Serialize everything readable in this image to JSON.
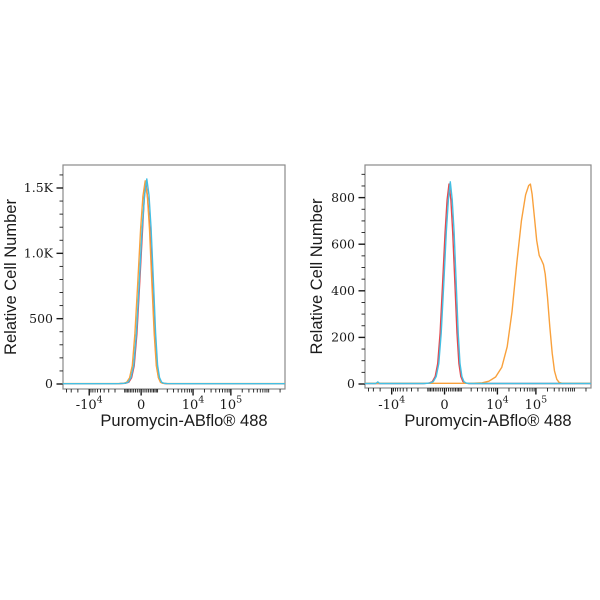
{
  "figure": {
    "background": "#ffffff",
    "frame_color": "#8a8a8a",
    "tick_color": "#1a1a1a",
    "text_color": "#1a1a1a"
  },
  "chart_data": [
    {
      "type": "line",
      "subtype": "flow-cytometry-histogram-overlay",
      "xlabel": "Puromycin-ABflo® 488",
      "ylabel": "Relative Cell Number",
      "legend": "none",
      "grid": false,
      "x_axis": {
        "scale": "biexponential",
        "zero_frac": 0.352,
        "k": 0.074,
        "a": 850,
        "major_ticks": [
          {
            "base": "-10",
            "exp": "4",
            "value": -10000
          },
          {
            "base": "0",
            "exp": "",
            "value": 0
          },
          {
            "base": "10",
            "exp": "4",
            "value": 10000
          },
          {
            "base": "10",
            "exp": "5",
            "value": 100000
          }
        ]
      },
      "y_axis": {
        "major_ticks": [
          {
            "label": "0",
            "value": 0
          },
          {
            "label": "500",
            "value": 500
          },
          {
            "label": "1.0K",
            "value": 1000
          },
          {
            "label": "1.5K",
            "value": 1500
          }
        ],
        "minor_step": 100,
        "max": 1676
      },
      "series": [
        {
          "name": "red",
          "color": "#e4494f",
          "points": [
            [
              -49000,
              2
            ],
            [
              -20000,
              2
            ],
            [
              -5000,
              2
            ],
            [
              -2000,
              2
            ],
            [
              -1400,
              3
            ],
            [
              -950,
              5
            ],
            [
              -700,
              14
            ],
            [
              -520,
              48
            ],
            [
              -370,
              140
            ],
            [
              -220,
              385
            ],
            [
              -80,
              760
            ],
            [
              70,
              1175
            ],
            [
              160,
              1420
            ],
            [
              250,
              1540
            ],
            [
              350,
              1420
            ],
            [
              480,
              1175
            ],
            [
              620,
              760
            ],
            [
              770,
              385
            ],
            [
              920,
              140
            ],
            [
              1080,
              48
            ],
            [
              1260,
              14
            ],
            [
              1520,
              5
            ],
            [
              1900,
              2
            ],
            [
              5000,
              2
            ],
            [
              20000,
              2
            ],
            [
              100000,
              2
            ],
            [
              600000,
              2
            ],
            [
              2600000,
              2
            ]
          ]
        },
        {
          "name": "orange",
          "color": "#f9a13c",
          "points": [
            [
              -49000,
              3
            ],
            [
              -20000,
              3
            ],
            [
              -5000,
              3
            ],
            [
              -2000,
              3
            ],
            [
              -1600,
              3
            ],
            [
              -1100,
              5
            ],
            [
              -850,
              13
            ],
            [
              -650,
              48
            ],
            [
              -480,
              140
            ],
            [
              -330,
              385
            ],
            [
              -180,
              765
            ],
            [
              -30,
              1185
            ],
            [
              90,
              1435
            ],
            [
              210,
              1555
            ],
            [
              330,
              1435
            ],
            [
              450,
              1185
            ],
            [
              600,
              765
            ],
            [
              750,
              385
            ],
            [
              900,
              140
            ],
            [
              1070,
              48
            ],
            [
              1250,
              13
            ],
            [
              1500,
              5
            ],
            [
              1900,
              3
            ],
            [
              5000,
              3
            ],
            [
              20000,
              3
            ],
            [
              100000,
              3
            ],
            [
              600000,
              3
            ],
            [
              2600000,
              3
            ]
          ]
        },
        {
          "name": "cyan",
          "color": "#44bfe3",
          "points": [
            [
              -49000,
              2
            ],
            [
              -20000,
              2
            ],
            [
              -5000,
              2
            ],
            [
              -2000,
              2
            ],
            [
              -1500,
              3
            ],
            [
              -1000,
              5
            ],
            [
              -750,
              14
            ],
            [
              -560,
              50
            ],
            [
              -400,
              142
            ],
            [
              -250,
              390
            ],
            [
              -100,
              770
            ],
            [
              50,
              1190
            ],
            [
              180,
              1445
            ],
            [
              300,
              1570
            ],
            [
              420,
              1445
            ],
            [
              550,
              1190
            ],
            [
              700,
              770
            ],
            [
              850,
              390
            ],
            [
              1000,
              142
            ],
            [
              1160,
              50
            ],
            [
              1350,
              14
            ],
            [
              1600,
              5
            ],
            [
              2000,
              3
            ],
            [
              5000,
              2
            ],
            [
              20000,
              2
            ],
            [
              100000,
              2
            ],
            [
              600000,
              2
            ],
            [
              2600000,
              2
            ]
          ]
        }
      ]
    },
    {
      "type": "line",
      "subtype": "flow-cytometry-histogram-overlay",
      "xlabel": "Puromycin-ABflo® 488",
      "ylabel": "Relative Cell Number",
      "legend": "none",
      "grid": false,
      "x_axis": {
        "scale": "biexponential",
        "zero_frac": 0.352,
        "k": 0.074,
        "a": 850,
        "major_ticks": [
          {
            "base": "-10",
            "exp": "4",
            "value": -10000
          },
          {
            "base": "0",
            "exp": "",
            "value": 0
          },
          {
            "base": "10",
            "exp": "4",
            "value": 10000
          },
          {
            "base": "10",
            "exp": "5",
            "value": 100000
          }
        ]
      },
      "y_axis": {
        "major_ticks": [
          {
            "label": "0",
            "value": 0
          },
          {
            "label": "200",
            "value": 200
          },
          {
            "label": "400",
            "value": 400
          },
          {
            "label": "600",
            "value": 600
          },
          {
            "label": "800",
            "value": 800
          }
        ],
        "minor_step": 50,
        "max": 940
      },
      "series": [
        {
          "name": "red",
          "color": "#e4494f",
          "points": [
            [
              -49000,
              2
            ],
            [
              -20000,
              2
            ],
            [
              -5000,
              2
            ],
            [
              -1400,
              2
            ],
            [
              -900,
              4
            ],
            [
              -680,
              10
            ],
            [
              -500,
              32
            ],
            [
              -360,
              88
            ],
            [
              -230,
              218
            ],
            [
              -100,
              432
            ],
            [
              30,
              652
            ],
            [
              130,
              790
            ],
            [
              230,
              858
            ],
            [
              330,
              790
            ],
            [
              430,
              652
            ],
            [
              560,
              432
            ],
            [
              690,
              218
            ],
            [
              820,
              88
            ],
            [
              960,
              32
            ],
            [
              1140,
              10
            ],
            [
              1350,
              4
            ],
            [
              1700,
              2
            ],
            [
              5000,
              2
            ],
            [
              20000,
              2
            ],
            [
              100000,
              2
            ],
            [
              600000,
              2
            ],
            [
              2600000,
              2
            ]
          ]
        },
        {
          "name": "orange",
          "color": "#f9a13c",
          "points": [
            [
              -49000,
              3
            ],
            [
              -20000,
              3
            ],
            [
              -5000,
              3
            ],
            [
              2000,
              3
            ],
            [
              4000,
              5
            ],
            [
              6000,
              12
            ],
            [
              9000,
              30
            ],
            [
              13000,
              72
            ],
            [
              18000,
              160
            ],
            [
              24000,
              310
            ],
            [
              32000,
              520
            ],
            [
              42000,
              700
            ],
            [
              54000,
              812
            ],
            [
              65000,
              852
            ],
            [
              72000,
              858
            ],
            [
              80000,
              815
            ],
            [
              92000,
              712
            ],
            [
              105000,
              616
            ],
            [
              122000,
              552
            ],
            [
              140000,
              532
            ],
            [
              158000,
              512
            ],
            [
              175000,
              472
            ],
            [
              200000,
              372
            ],
            [
              230000,
              246
            ],
            [
              265000,
              132
            ],
            [
              305000,
              56
            ],
            [
              350000,
              20
            ],
            [
              400000,
              7
            ],
            [
              480000,
              3
            ],
            [
              2600000,
              3
            ]
          ]
        },
        {
          "name": "cyan",
          "color": "#44bfe3",
          "points": [
            [
              -49000,
              2
            ],
            [
              -26000,
              2
            ],
            [
              -23000,
              9
            ],
            [
              -20500,
              2
            ],
            [
              -5000,
              2
            ],
            [
              -1300,
              2
            ],
            [
              -850,
              4
            ],
            [
              -620,
              10
            ],
            [
              -440,
              32
            ],
            [
              -300,
              88
            ],
            [
              -170,
              218
            ],
            [
              -40,
              432
            ],
            [
              90,
              652
            ],
            [
              195,
              792
            ],
            [
              300,
              868
            ],
            [
              405,
              792
            ],
            [
              510,
              652
            ],
            [
              640,
              432
            ],
            [
              770,
              218
            ],
            [
              900,
              88
            ],
            [
              1050,
              32
            ],
            [
              1230,
              10
            ],
            [
              1450,
              4
            ],
            [
              1800,
              2
            ],
            [
              5000,
              2
            ],
            [
              20000,
              2
            ],
            [
              100000,
              2
            ],
            [
              600000,
              2
            ],
            [
              2600000,
              2
            ]
          ]
        }
      ]
    }
  ]
}
